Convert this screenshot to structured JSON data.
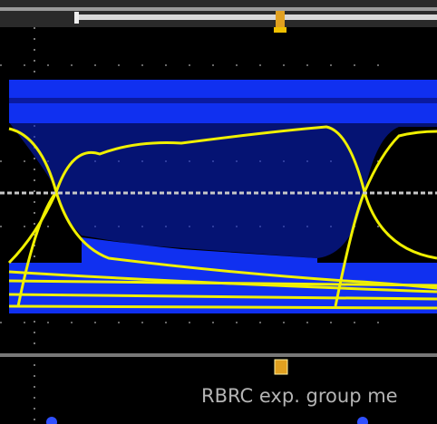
{
  "overlay_text": "RBRC exp. group me"
}
